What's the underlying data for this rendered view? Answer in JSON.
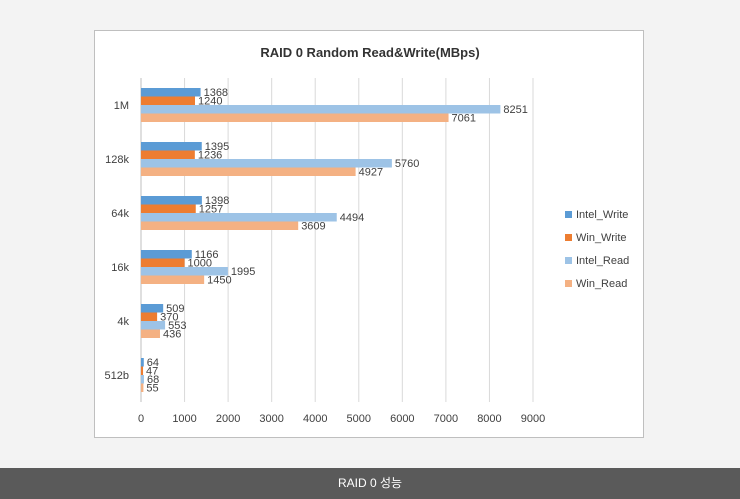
{
  "chart_data": {
    "type": "bar",
    "orientation": "horizontal",
    "title": "RAID  0 Random Read&Write(MBps)",
    "categories": [
      "1M",
      "128k",
      "64k",
      "16k",
      "4k",
      "512b"
    ],
    "series": [
      {
        "name": "Intel_Write",
        "color": "#5b9bd5",
        "values": [
          1368,
          1395,
          1398,
          1166,
          509,
          64
        ]
      },
      {
        "name": "Win_Write",
        "color": "#ed7d31",
        "values": [
          1240,
          1236,
          1257,
          1000,
          370,
          47
        ]
      },
      {
        "name": "Intel_Read",
        "color": "#9dc3e6",
        "values": [
          8251,
          5760,
          4494,
          1995,
          553,
          68
        ]
      },
      {
        "name": "Win_Read",
        "color": "#f4b183",
        "values": [
          7061,
          4927,
          3609,
          1450,
          436,
          55
        ]
      }
    ],
    "xlim": [
      0,
      9000
    ],
    "xticks": [
      0,
      1000,
      2000,
      3000,
      4000,
      5000,
      6000,
      7000,
      8000,
      9000
    ],
    "grid": true,
    "legend": "right"
  },
  "caption": "RAID 0 성능"
}
